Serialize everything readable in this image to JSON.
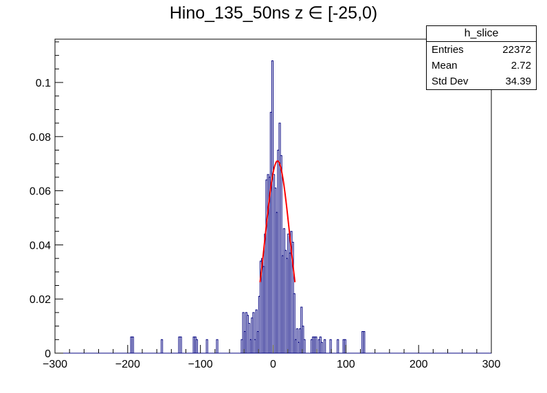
{
  "title": "Hino_135_50ns z ∈ [-25,0)",
  "stats": {
    "name": "h_slice",
    "rows": [
      {
        "label": "Entries",
        "value": "22372"
      },
      {
        "label": "Mean",
        "value": "2.72"
      },
      {
        "label": "Std Dev",
        "value": "34.39"
      }
    ]
  },
  "chart_data": {
    "type": "histogram",
    "title": "Hino_135_50ns z ∈ [-25,0)",
    "xlabel": "",
    "ylabel": "",
    "xlim": [
      -300,
      300
    ],
    "ylim": [
      0,
      0.116
    ],
    "x_ticks": [
      -300,
      -200,
      -100,
      0,
      100,
      200,
      300
    ],
    "x_tick_labels": [
      "−300",
      "−200",
      "−100",
      "0",
      "100",
      "200",
      "300"
    ],
    "y_ticks": [
      0,
      0.02,
      0.04,
      0.06,
      0.08,
      0.1
    ],
    "y_tick_labels": [
      "0",
      "0.02",
      "0.04",
      "0.06",
      "0.08",
      "0.1"
    ],
    "grid": false,
    "histogram_color": "#00007f",
    "fit_color": "#ff0000",
    "bin_width": 2,
    "bins": [
      [
        -195,
        0.006
      ],
      [
        -193,
        0.006
      ],
      [
        -153,
        0.005
      ],
      [
        -129,
        0.006
      ],
      [
        -127,
        0.006
      ],
      [
        -109,
        0.006
      ],
      [
        -107,
        0.006
      ],
      [
        -105,
        0.005
      ],
      [
        -91,
        0.005
      ],
      [
        -77,
        0.005
      ],
      [
        -43,
        0.005
      ],
      [
        -41,
        0.015
      ],
      [
        -39,
        0.008
      ],
      [
        -37,
        0.015
      ],
      [
        -35,
        0.014
      ],
      [
        -33,
        0.011
      ],
      [
        -31,
        0.005
      ],
      [
        -29,
        0.013
      ],
      [
        -27,
        0.015
      ],
      [
        -25,
        0.005
      ],
      [
        -23,
        0.016
      ],
      [
        -21,
        0.008
      ],
      [
        -19,
        0.021
      ],
      [
        -17,
        0.034
      ],
      [
        -15,
        0.035
      ],
      [
        -13,
        0.032
      ],
      [
        -11,
        0.044
      ],
      [
        -9,
        0.064
      ],
      [
        -7,
        0.066
      ],
      [
        -5,
        0.065
      ],
      [
        -3,
        0.089
      ],
      [
        -1,
        0.108
      ],
      [
        1,
        0.066
      ],
      [
        3,
        0.061
      ],
      [
        5,
        0.052
      ],
      [
        7,
        0.075
      ],
      [
        9,
        0.085
      ],
      [
        11,
        0.073
      ],
      [
        13,
        0.036
      ],
      [
        15,
        0.046
      ],
      [
        17,
        0.038
      ],
      [
        19,
        0.035
      ],
      [
        21,
        0.044
      ],
      [
        23,
        0.037
      ],
      [
        25,
        0.045
      ],
      [
        27,
        0.041
      ],
      [
        29,
        0.022
      ],
      [
        31,
        0.005
      ],
      [
        33,
        0.009
      ],
      [
        35,
        0.004
      ],
      [
        37,
        0.009
      ],
      [
        39,
        0.017
      ],
      [
        41,
        0.01
      ],
      [
        43,
        0.005
      ],
      [
        53,
        0.005
      ],
      [
        55,
        0.006
      ],
      [
        57,
        0.006
      ],
      [
        59,
        0.006
      ],
      [
        63,
        0.005
      ],
      [
        65,
        0.006
      ],
      [
        67,
        0.004
      ],
      [
        71,
        0.005
      ],
      [
        79,
        0.005
      ],
      [
        89,
        0.005
      ],
      [
        97,
        0.005
      ],
      [
        99,
        0.005
      ],
      [
        123,
        0.008
      ],
      [
        125,
        0.008
      ]
    ],
    "fit": {
      "type": "gaussian",
      "amplitude": 0.071,
      "mean": 6,
      "sigma": 17,
      "range": [
        -18,
        30
      ]
    }
  }
}
